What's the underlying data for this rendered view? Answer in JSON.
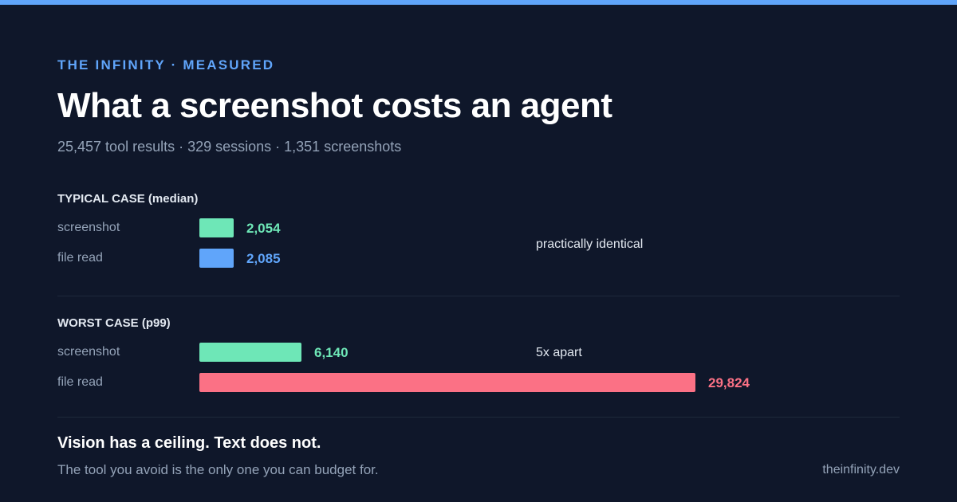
{
  "header": {
    "eyebrow": "THE INFINITY · MEASURED",
    "title": "What a screenshot costs an agent",
    "subtitle": "25,457 tool results · 329 sessions · 1,351 screenshots"
  },
  "chart_data": [
    {
      "type": "bar",
      "orientation": "horizontal",
      "title": "TYPICAL CASE (median)",
      "annotation": "practically identical",
      "categories": [
        "screenshot",
        "file read"
      ],
      "values": [
        2054,
        2085
      ],
      "value_labels": [
        "2,054",
        "2,085"
      ],
      "colors": [
        "#6ee7b7",
        "#60a5fa"
      ]
    },
    {
      "type": "bar",
      "orientation": "horizontal",
      "title": "WORST CASE (p99)",
      "annotation": "5x apart",
      "categories": [
        "screenshot",
        "file read"
      ],
      "values": [
        6140,
        29824
      ],
      "value_labels": [
        "6,140",
        "29,824"
      ],
      "colors": [
        "#6ee7b7",
        "#fb7185"
      ]
    }
  ],
  "footer": {
    "headline": "Vision has a ceiling. Text does not.",
    "sub": "The tool you avoid is the only one you can budget for.",
    "site": "theinfinity.dev"
  }
}
